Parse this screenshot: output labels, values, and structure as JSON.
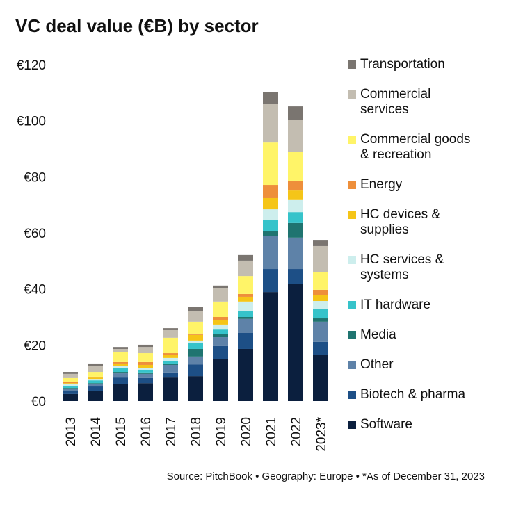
{
  "chart_data": {
    "type": "stacked_bar",
    "title": "VC deal value (€B) by sector",
    "source": "Source: PitchBook • Geography: Europe • *As of December 31, 2023",
    "categories": [
      "2013",
      "2014",
      "2015",
      "2016",
      "2017",
      "2018",
      "2019",
      "2020",
      "2021",
      "2022",
      "2023*"
    ],
    "ylim": [
      0,
      120
    ],
    "yticks": [
      {
        "value": 0,
        "label": "€0"
      },
      {
        "value": 20,
        "label": "€20"
      },
      {
        "value": 40,
        "label": "€40"
      },
      {
        "value": 60,
        "label": "€60"
      },
      {
        "value": 80,
        "label": "€80"
      },
      {
        "value": 100,
        "label": "€100"
      },
      {
        "value": 120,
        "label": "€120"
      }
    ],
    "series": [
      {
        "name": "Software",
        "color": "#0b1f3e",
        "values": [
          2.5,
          3.5,
          6,
          6.4,
          8.4,
          8.9,
          15.1,
          18.6,
          38.9,
          41.9,
          16.6
        ]
      },
      {
        "name": "Biotech & pharma",
        "color": "#1d4f86",
        "values": [
          1,
          1.7,
          2.4,
          1.8,
          1.8,
          4.2,
          4.5,
          5.7,
          8.2,
          5.2,
          4.5
        ]
      },
      {
        "name": "Other",
        "color": "#5e82a8",
        "values": [
          1,
          1,
          1.5,
          1.5,
          2.7,
          2.8,
          3.2,
          5,
          11.7,
          11.2,
          7.2
        ]
      },
      {
        "name": "Media",
        "color": "#1f7470",
        "values": [
          0.2,
          0.2,
          0.5,
          0.5,
          0.5,
          2.7,
          1,
          0.7,
          1.9,
          5.2,
          1.2
        ]
      },
      {
        "name": "IT hardware",
        "color": "#36c3ca",
        "values": [
          0.8,
          1,
          1.3,
          1,
          1,
          2,
          1.7,
          2.2,
          4,
          3.9,
          3.5
        ]
      },
      {
        "name": "HC services & systems",
        "color": "#cdeeed",
        "values": [
          0.5,
          0.5,
          0.7,
          0.7,
          1,
          1,
          1.8,
          3.3,
          3.7,
          4.3,
          2.7
        ]
      },
      {
        "name": "HC devices & supplies",
        "color": "#f5c518",
        "values": [
          0.4,
          0.5,
          1,
          1,
          1.2,
          2,
          1.7,
          1.7,
          4,
          3.4,
          2
        ]
      },
      {
        "name": "Energy",
        "color": "#ee8f3b",
        "values": [
          0.3,
          0.3,
          0.5,
          1,
          0.5,
          0.4,
          1,
          1,
          4.7,
          3.5,
          2
        ]
      },
      {
        "name": "Commercial goods & recreation",
        "color": "#fff468",
        "values": [
          1.5,
          1.7,
          3.5,
          3.2,
          5.5,
          4.3,
          5.5,
          6.4,
          15.1,
          10.4,
          6.2
        ]
      },
      {
        "name": "Commercial services",
        "color": "#c3bdb1",
        "values": [
          1.5,
          2.2,
          1.2,
          2.2,
          2.7,
          3.9,
          4.9,
          5.5,
          13.7,
          11.4,
          9.4
        ]
      },
      {
        "name": "Transportation",
        "color": "#7a7570",
        "values": [
          0.7,
          0.8,
          0.7,
          0.8,
          0.7,
          1.5,
          0.8,
          2,
          4.2,
          4.7,
          2.2
        ]
      }
    ]
  }
}
